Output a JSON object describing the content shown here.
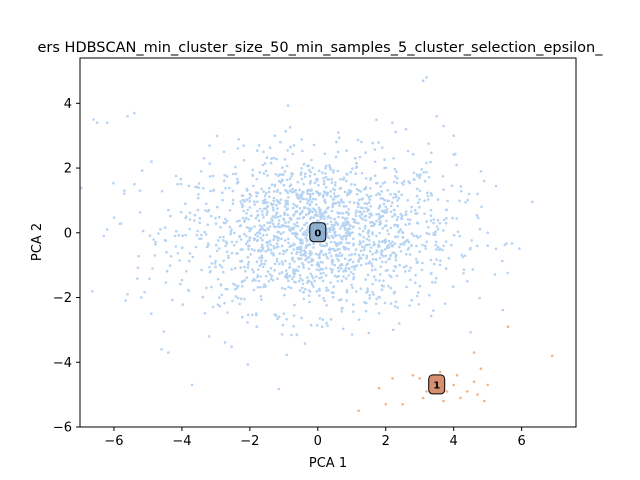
{
  "chart_data": {
    "type": "scatter",
    "title": "ers HDBSCAN_min_cluster_size_50_min_samples_5_cluster_selection_epsilon_",
    "xlabel": "PCA 1",
    "ylabel": "PCA 2",
    "xlim": [
      -7.0,
      7.6
    ],
    "ylim": [
      -6.0,
      5.4
    ],
    "xticks": [
      -6,
      -4,
      -2,
      0,
      2,
      4,
      6
    ],
    "yticks": [
      -6,
      -4,
      -2,
      0,
      2,
      4
    ],
    "grid": false,
    "series": [
      {
        "cluster": "0",
        "color": "#b5d3f2",
        "label_color": "#8fafd1",
        "center": [
          0.0,
          0.0
        ],
        "approx_points": 1800,
        "spread": [
          2.0,
          1.2
        ],
        "points": [
          [
            -6.6,
            3.5
          ],
          [
            -6.5,
            3.4
          ],
          [
            -6.2,
            3.4
          ],
          [
            -5.4,
            3.7
          ],
          [
            -5.6,
            3.6
          ],
          [
            -6.2,
            0.1
          ],
          [
            -6.3,
            -0.1
          ],
          [
            -5.7,
            1.3
          ],
          [
            -5.4,
            1.5
          ],
          [
            -5.6,
            -1.9
          ],
          [
            -5.2,
            -2.0
          ],
          [
            -4.9,
            -2.5
          ],
          [
            -4.6,
            -3.6
          ],
          [
            -4.4,
            -3.7
          ],
          [
            -3.7,
            -4.7
          ],
          [
            -3.2,
            -3.2
          ],
          [
            -2.9,
            -2.0
          ],
          [
            -1.6,
            2.5
          ],
          [
            -1.1,
            2.8
          ],
          [
            -0.7,
            2.7
          ],
          [
            0.6,
            2.5
          ],
          [
            1.1,
            2.3
          ],
          [
            2.2,
            3.4
          ],
          [
            2.6,
            3.2
          ],
          [
            3.2,
            4.8
          ],
          [
            3.1,
            4.7
          ],
          [
            3.5,
            3.6
          ],
          [
            3.7,
            3.3
          ],
          [
            4.0,
            3.0
          ],
          [
            4.8,
            1.9
          ],
          [
            4.9,
            1.6
          ],
          [
            4.7,
            1.2
          ],
          [
            5.0,
            0.0
          ],
          [
            5.0,
            -0.4
          ],
          [
            4.4,
            -1.5
          ],
          [
            3.4,
            -2.4
          ],
          [
            2.4,
            -2.8
          ],
          [
            1.5,
            -3.1
          ],
          [
            0.2,
            -2.1
          ],
          [
            -1.0,
            -2.5
          ],
          [
            -1.8,
            -2.9
          ],
          [
            -2.3,
            -2.2
          ],
          [
            -0.5,
            1.8
          ],
          [
            1.5,
            1.1
          ],
          [
            2.0,
            0.8
          ],
          [
            -3.9,
            0.9
          ],
          [
            -4.4,
            0.7
          ],
          [
            -4.8,
            -0.7
          ],
          [
            -2.1,
            0.6
          ],
          [
            -1.3,
            -0.7
          ]
        ]
      },
      {
        "cluster": "1",
        "color": "#f2b48a",
        "label_color": "#d69070",
        "center": [
          3.5,
          -4.7
        ],
        "approx_points": 60,
        "points": [
          [
            1.2,
            -5.5
          ],
          [
            1.8,
            -4.8
          ],
          [
            2.2,
            -4.5
          ],
          [
            2.5,
            -5.3
          ],
          [
            2.8,
            -4.4
          ],
          [
            3.0,
            -4.5
          ],
          [
            3.2,
            -4.9
          ],
          [
            3.4,
            -4.6
          ],
          [
            3.6,
            -4.3
          ],
          [
            3.8,
            -4.9
          ],
          [
            4.0,
            -4.7
          ],
          [
            4.2,
            -5.1
          ],
          [
            4.4,
            -4.9
          ],
          [
            4.6,
            -4.6
          ],
          [
            4.7,
            -5.0
          ],
          [
            4.8,
            -4.2
          ],
          [
            4.9,
            -5.2
          ],
          [
            5.0,
            -4.7
          ],
          [
            4.6,
            -3.7
          ],
          [
            5.6,
            -2.9
          ],
          [
            6.9,
            -3.8
          ],
          [
            2.0,
            -5.3
          ],
          [
            3.1,
            -5.1
          ],
          [
            4.1,
            -4.4
          ],
          [
            3.7,
            -5.2
          ]
        ]
      }
    ],
    "cluster_labels": [
      {
        "text": "0",
        "x": 0.0,
        "y": 0.0
      },
      {
        "text": "1",
        "x": 3.5,
        "y": -4.7
      }
    ]
  }
}
